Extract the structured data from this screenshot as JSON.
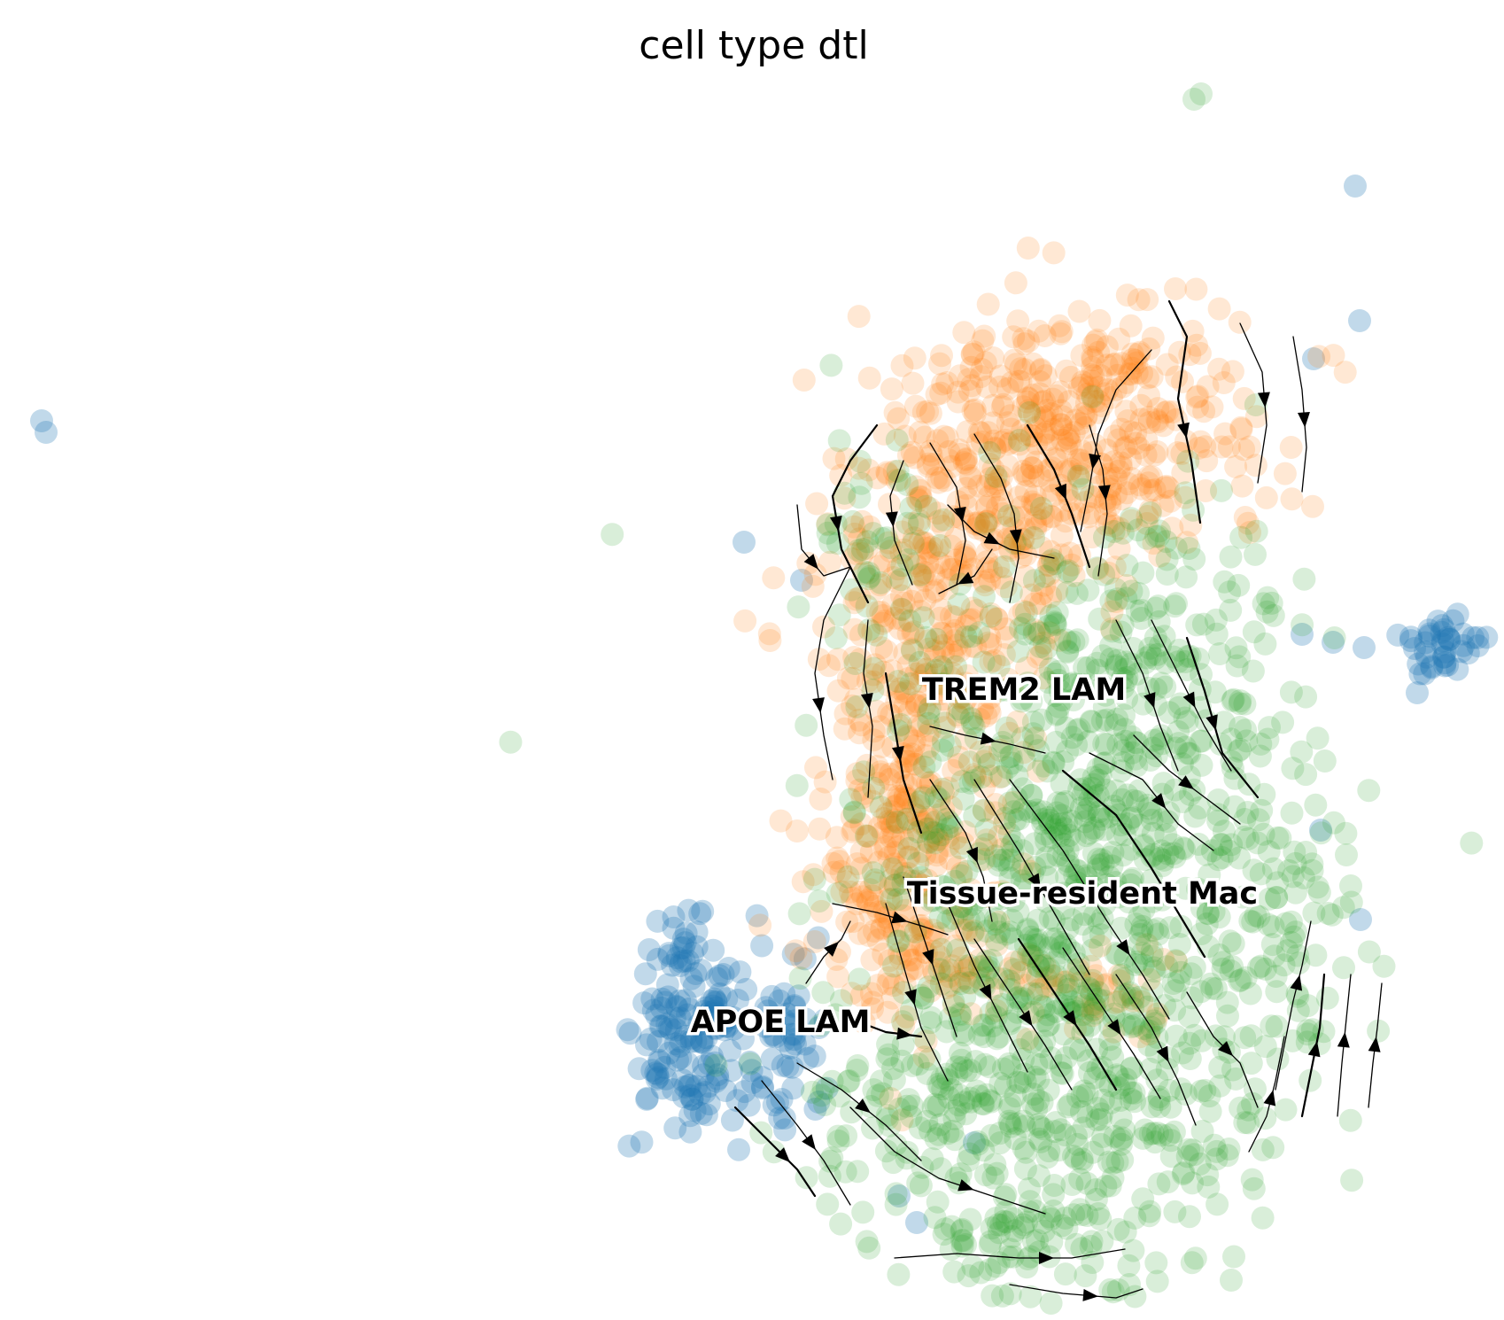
{
  "chart_data": {
    "type": "scatter",
    "title": "cell type dtl",
    "axes": "off",
    "grid": false,
    "overlay": "velocity streamlines (black, with arrowheads)",
    "categories": [
      {
        "name": "APOE LAM",
        "color": "#1f77b4"
      },
      {
        "name": "TREM2 LAM",
        "color": "#ff7f0e"
      },
      {
        "name": "Tissue-resident Mac",
        "color": "#2ca02c"
      }
    ]
  }
}
